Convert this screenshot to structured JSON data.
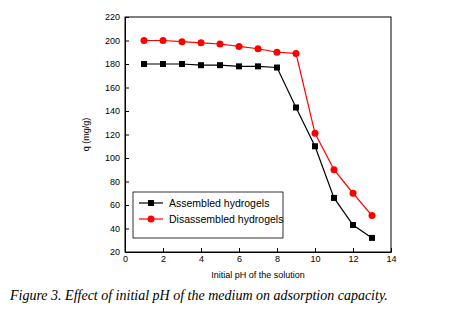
{
  "chart_data": {
    "type": "line",
    "title": "Figure 3. Effect of initial pH of the medium on adsorption capacity.",
    "x_label": "Initial pH of the solution",
    "y_label": "q (mg/g)",
    "x": [
      1,
      2,
      3,
      4,
      5,
      6,
      7,
      8,
      9,
      10,
      11,
      12,
      13
    ],
    "series": [
      {
        "name": "Assembled hydrogels",
        "color": "#000000",
        "marker": "square",
        "line_style": "solid",
        "values": [
          180,
          180,
          180,
          179,
          179,
          178,
          178,
          177,
          143,
          110,
          66,
          43,
          32
        ]
      },
      {
        "name": "Disassembled hydrogels",
        "color": "#ff0000",
        "marker": "circle",
        "line_style": "solid",
        "values": [
          200,
          200,
          199,
          198,
          197,
          195,
          193,
          190,
          189,
          121,
          90,
          70,
          51
        ]
      }
    ],
    "xlim": [
      0,
      14
    ],
    "xticks": [
      0,
      2,
      4,
      6,
      8,
      10,
      12,
      14
    ],
    "ylim": [
      20,
      220
    ],
    "yticks": [
      20,
      40,
      60,
      80,
      100,
      120,
      140,
      160,
      180,
      200,
      220
    ],
    "grid": false,
    "legend": "lower left"
  }
}
